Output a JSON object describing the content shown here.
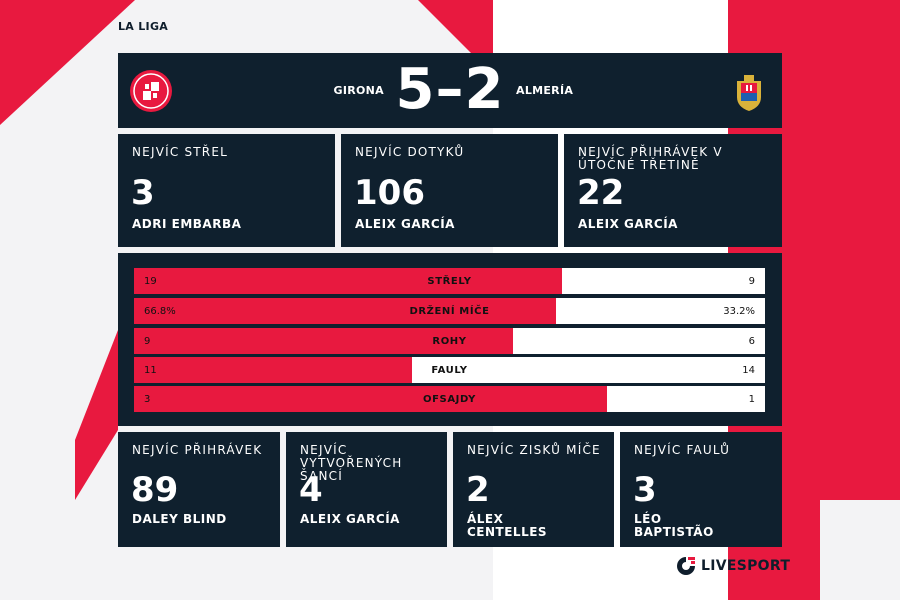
{
  "league": "LA LIGA",
  "match": {
    "home": "GIRONA",
    "away": "ALMERÍA",
    "score": "5–2"
  },
  "top_cards": [
    {
      "label": "NEJVÍC STŘEL",
      "value": "3",
      "player": "ADRI EMBARBA"
    },
    {
      "label": "NEJVÍC DOTYKŮ",
      "value": "106",
      "player": "ALEIX GARCÍA"
    },
    {
      "label": "NEJVÍC PŘIHRÁVEK V ÚTOČNÉ TŘETINĚ",
      "value": "22",
      "player": "ALEIX GARCÍA"
    }
  ],
  "stats": [
    {
      "name": "STŘELY",
      "home": "19",
      "away": "9",
      "share": 0.679
    },
    {
      "name": "DRŽENÍ MÍČE",
      "home": "66.8%",
      "away": "33.2%",
      "share": 0.668
    },
    {
      "name": "ROHY",
      "home": "9",
      "away": "6",
      "share": 0.6
    },
    {
      "name": "FAULY",
      "home": "11",
      "away": "14",
      "share": 0.44
    },
    {
      "name": "OFSAJDY",
      "home": "3",
      "away": "1",
      "share": 0.75
    }
  ],
  "bottom_cards": [
    {
      "label": "NEJVÍC PŘIHRÁVEK",
      "value": "89",
      "player": "DALEY BLIND"
    },
    {
      "label": "NEJVÍC VYTVOŘENÝCH ŠANCÍ",
      "value": "4",
      "player": "ALEIX GARCÍA"
    },
    {
      "label": "NEJVÍC ZISKŮ MÍČE",
      "value": "2",
      "player": "ÁLEX CENTELLES"
    },
    {
      "label": "NEJVÍC FAULŮ",
      "value": "3",
      "player": "LÉO BAPTISTÃO"
    }
  ],
  "brand": "LIVESPORT",
  "colors": {
    "panel": "#0f202e",
    "accent": "#e8193f",
    "background": "#f3f3f5"
  },
  "icons": {
    "home_logo": "girona-crest-icon",
    "away_logo": "almeria-crest-icon",
    "brand_logo": "livesport-logo-icon"
  }
}
